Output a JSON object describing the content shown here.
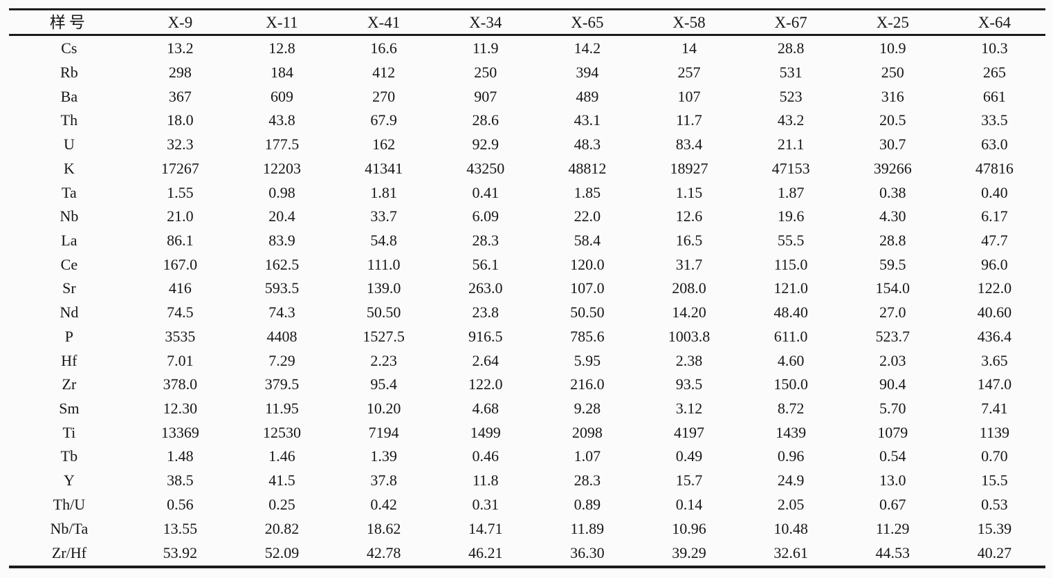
{
  "table": {
    "columns": [
      "样号",
      "X-9",
      "X-11",
      "X-41",
      "X-34",
      "X-65",
      "X-58",
      "X-67",
      "X-25",
      "X-64"
    ],
    "rows": [
      {
        "label": "Cs",
        "values": [
          "13.2",
          "12.8",
          "16.6",
          "11.9",
          "14.2",
          "14",
          "28.8",
          "10.9",
          "10.3"
        ]
      },
      {
        "label": "Rb",
        "values": [
          "298",
          "184",
          "412",
          "250",
          "394",
          "257",
          "531",
          "250",
          "265"
        ]
      },
      {
        "label": "Ba",
        "values": [
          "367",
          "609",
          "270",
          "907",
          "489",
          "107",
          "523",
          "316",
          "661"
        ]
      },
      {
        "label": "Th",
        "values": [
          "18.0",
          "43.8",
          "67.9",
          "28.6",
          "43.1",
          "11.7",
          "43.2",
          "20.5",
          "33.5"
        ]
      },
      {
        "label": "U",
        "values": [
          "32.3",
          "177.5",
          "162",
          "92.9",
          "48.3",
          "83.4",
          "21.1",
          "30.7",
          "63.0"
        ]
      },
      {
        "label": "K",
        "values": [
          "17267",
          "12203",
          "41341",
          "43250",
          "48812",
          "18927",
          "47153",
          "39266",
          "47816"
        ]
      },
      {
        "label": "Ta",
        "values": [
          "1.55",
          "0.98",
          "1.81",
          "0.41",
          "1.85",
          "1.15",
          "1.87",
          "0.38",
          "0.40"
        ]
      },
      {
        "label": "Nb",
        "values": [
          "21.0",
          "20.4",
          "33.7",
          "6.09",
          "22.0",
          "12.6",
          "19.6",
          "4.30",
          "6.17"
        ]
      },
      {
        "label": "La",
        "values": [
          "86.1",
          "83.9",
          "54.8",
          "28.3",
          "58.4",
          "16.5",
          "55.5",
          "28.8",
          "47.7"
        ]
      },
      {
        "label": "Ce",
        "values": [
          "167.0",
          "162.5",
          "111.0",
          "56.1",
          "120.0",
          "31.7",
          "115.0",
          "59.5",
          "96.0"
        ]
      },
      {
        "label": "Sr",
        "values": [
          "416",
          "593.5",
          "139.0",
          "263.0",
          "107.0",
          "208.0",
          "121.0",
          "154.0",
          "122.0"
        ]
      },
      {
        "label": "Nd",
        "values": [
          "74.5",
          "74.3",
          "50.50",
          "23.8",
          "50.50",
          "14.20",
          "48.40",
          "27.0",
          "40.60"
        ]
      },
      {
        "label": "P",
        "values": [
          "3535",
          "4408",
          "1527.5",
          "916.5",
          "785.6",
          "1003.8",
          "611.0",
          "523.7",
          "436.4"
        ]
      },
      {
        "label": "Hf",
        "values": [
          "7.01",
          "7.29",
          "2.23",
          "2.64",
          "5.95",
          "2.38",
          "4.60",
          "2.03",
          "3.65"
        ]
      },
      {
        "label": "Zr",
        "values": [
          "378.0",
          "379.5",
          "95.4",
          "122.0",
          "216.0",
          "93.5",
          "150.0",
          "90.4",
          "147.0"
        ]
      },
      {
        "label": "Sm",
        "values": [
          "12.30",
          "11.95",
          "10.20",
          "4.68",
          "9.28",
          "3.12",
          "8.72",
          "5.70",
          "7.41"
        ]
      },
      {
        "label": "Ti",
        "values": [
          "13369",
          "12530",
          "7194",
          "1499",
          "2098",
          "4197",
          "1439",
          "1079",
          "1139"
        ]
      },
      {
        "label": "Tb",
        "values": [
          "1.48",
          "1.46",
          "1.39",
          "0.46",
          "1.07",
          "0.49",
          "0.96",
          "0.54",
          "0.70"
        ]
      },
      {
        "label": "Y",
        "values": [
          "38.5",
          "41.5",
          "37.8",
          "11.8",
          "28.3",
          "15.7",
          "24.9",
          "13.0",
          "15.5"
        ]
      },
      {
        "label": "Th/U",
        "values": [
          "0.56",
          "0.25",
          "0.42",
          "0.31",
          "0.89",
          "0.14",
          "2.05",
          "0.67",
          "0.53"
        ]
      },
      {
        "label": "Nb/Ta",
        "values": [
          "13.55",
          "20.82",
          "18.62",
          "14.71",
          "11.89",
          "10.96",
          "10.48",
          "11.29",
          "15.39"
        ]
      },
      {
        "label": "Zr/Hf",
        "values": [
          "53.92",
          "52.09",
          "42.78",
          "46.21",
          "36.30",
          "39.29",
          "32.61",
          "44.53",
          "40.27"
        ]
      }
    ]
  },
  "colors": {
    "rule": "#1c1c1c",
    "text": "#161616",
    "background": "#fbfbfb"
  }
}
